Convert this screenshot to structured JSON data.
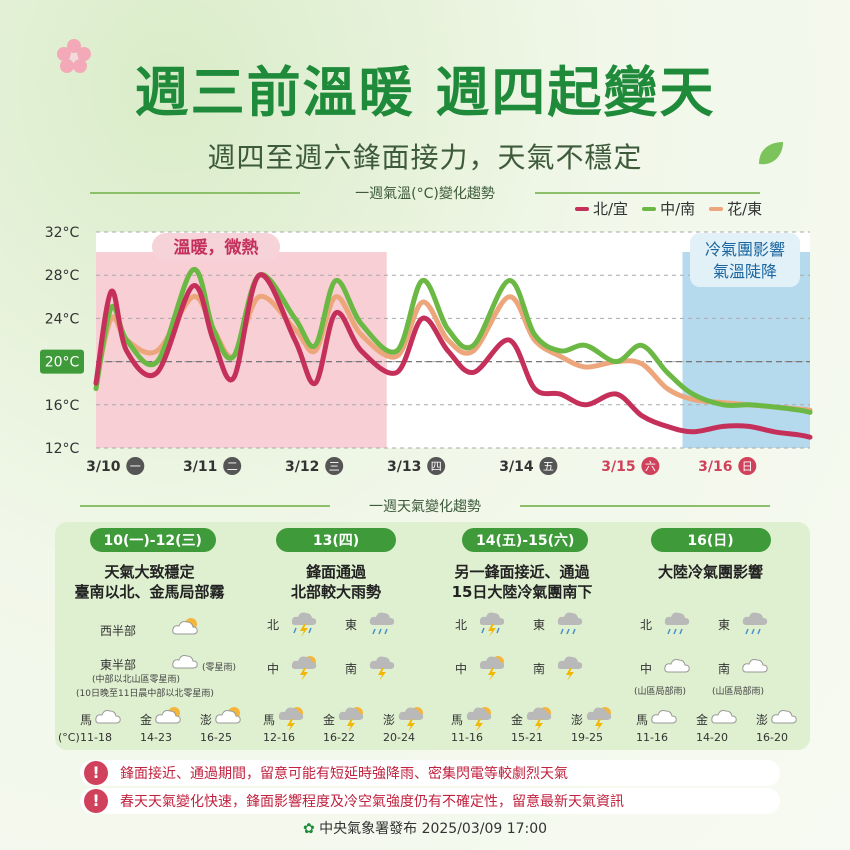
{
  "header": {
    "title": "週三前溫暖 週四起變天",
    "subtitle": "週四至週六鋒面接力，天氣不穩定"
  },
  "colors": {
    "north": "#c4305a",
    "central": "#6cb845",
    "east": "#eda67c",
    "warm_zone": "#f6c7cc",
    "cold_zone": "#a9d3ea",
    "accent": "#1f8a3a"
  },
  "chart_section_title": "一週氣溫(°C)變化趨勢",
  "chart_data": {
    "type": "line",
    "title": "一週氣溫(°C)變化趨勢",
    "ylim": [
      12,
      32
    ],
    "yticks": [
      "32°C",
      "28°C",
      "24°C",
      "20°C",
      "16°C",
      "12°C"
    ],
    "x_range": [
      0,
      7
    ],
    "x_labels": [
      "3/10",
      "3/11",
      "3/12",
      "3/13",
      "3/14",
      "3/15",
      "3/16"
    ],
    "x_weekdays": [
      "一",
      "二",
      "三",
      "四",
      "五",
      "六",
      "日"
    ],
    "legend_position": "top-right",
    "series": [
      {
        "name": "北/宜",
        "color": "#c4305a",
        "x": [
          0,
          0.15,
          0.3,
          0.6,
          0.95,
          1.15,
          1.35,
          1.6,
          1.95,
          2.15,
          2.35,
          2.6,
          2.95,
          3.2,
          3.45,
          3.7,
          4.05,
          4.3,
          4.55,
          4.8,
          5.1,
          5.35,
          5.6,
          5.85,
          6.15,
          6.4,
          6.65,
          6.9,
          7
        ],
        "y": [
          18,
          26.5,
          21,
          19,
          27,
          22,
          18.5,
          28,
          22,
          18,
          24.5,
          21,
          19,
          24,
          21,
          19,
          22,
          17.5,
          17,
          16,
          17,
          15,
          14,
          13.5,
          14,
          14,
          13.5,
          13.2,
          13
        ]
      },
      {
        "name": "中/南",
        "color": "#6cb845",
        "x": [
          0,
          0.15,
          0.3,
          0.6,
          0.95,
          1.15,
          1.35,
          1.6,
          1.95,
          2.15,
          2.35,
          2.6,
          2.95,
          3.2,
          3.45,
          3.7,
          4.05,
          4.3,
          4.55,
          4.8,
          5.1,
          5.35,
          5.6,
          5.85,
          6.15,
          6.4,
          6.65,
          6.9,
          7
        ],
        "y": [
          17.5,
          25,
          22,
          20,
          28.5,
          23,
          20.5,
          28,
          24,
          21.5,
          27.5,
          23.5,
          21,
          27.5,
          23,
          21.5,
          27.5,
          22.5,
          21,
          21.5,
          20,
          21.5,
          19,
          17,
          16,
          16,
          15.8,
          15.5,
          15.3
        ]
      },
      {
        "name": "花/東",
        "color": "#eda67c",
        "x": [
          0,
          0.15,
          0.3,
          0.6,
          0.95,
          1.15,
          1.35,
          1.6,
          1.95,
          2.15,
          2.35,
          2.6,
          2.95,
          3.2,
          3.45,
          3.7,
          4.05,
          4.3,
          4.55,
          4.8,
          5.1,
          5.35,
          5.6,
          5.85,
          6.15,
          6.4,
          6.65,
          6.9,
          7
        ],
        "y": [
          18,
          24,
          22,
          21,
          26,
          23,
          20.5,
          26,
          23,
          21,
          26,
          22.5,
          20.5,
          25.5,
          22,
          21,
          26,
          22,
          20.5,
          19.5,
          20,
          19.8,
          17.5,
          16.5,
          16.2,
          16,
          15.8,
          15.6,
          15.5
        ]
      }
    ],
    "annotations": [
      {
        "text": "溫暖，微熱"
      },
      {
        "text": "冷氣團影響\n氣溫陡降"
      }
    ],
    "zones": [
      {
        "label": "warm",
        "x_from": 0,
        "x_to": 2.85
      },
      {
        "label": "cold",
        "x_from": 5.75,
        "x_to": 7
      }
    ],
    "reference_line": 20
  },
  "legend": [
    {
      "label": "北/宜",
      "color": "#c4305a"
    },
    {
      "label": "中/南",
      "color": "#6cb845"
    },
    {
      "label": "花/東",
      "color": "#eda67c"
    }
  ],
  "weather_section_title": "一週天氣變化趨勢",
  "periods": [
    {
      "date": "10(一)-12(三)",
      "headline": "天氣大致穩定\n臺南以北、金馬局部霧",
      "rows": [
        {
          "region": "西半部",
          "icon": "sunny-partly-cloudy-icon"
        },
        {
          "region": "東半部",
          "icon": "cloudy-icon",
          "note": "(零星雨)"
        }
      ],
      "notes": [
        "(中部以北山區零星雨)",
        "(10日晚至11日晨中部以北零星雨)"
      ]
    },
    {
      "date": "13(四)",
      "headline": "鋒面通過\n北部較大雨勢",
      "cells": [
        {
          "region": "北",
          "icon": "thunderstorm-icon"
        },
        {
          "region": "東",
          "icon": "rain-icon"
        },
        {
          "region": "中",
          "icon": "thunder-sun-icon"
        },
        {
          "region": "南",
          "icon": "thunder-cloud-icon"
        }
      ]
    },
    {
      "date": "14(五)-15(六)",
      "headline": "另一鋒面接近、通過\n15日大陸冷氣團南下",
      "cells": [
        {
          "region": "北",
          "icon": "thunderstorm-icon"
        },
        {
          "region": "東",
          "icon": "rain-icon"
        },
        {
          "region": "中",
          "icon": "thunder-sun-icon"
        },
        {
          "region": "南",
          "icon": "thunder-cloud-icon"
        }
      ]
    },
    {
      "date": "16(日)",
      "headline": "大陸冷氣團影響",
      "cells": [
        {
          "region": "北",
          "icon": "rain-icon"
        },
        {
          "region": "東",
          "icon": "rain-icon"
        },
        {
          "region": "中",
          "icon": "cloudy-icon",
          "note": "(山區局部雨)"
        },
        {
          "region": "南",
          "icon": "cloudy-icon",
          "note": "(山區局部雨)"
        }
      ]
    }
  ],
  "outer_islands": {
    "unit": "(°C)",
    "groups": [
      [
        {
          "name": "馬",
          "range": "11-18"
        },
        {
          "name": "金",
          "range": "14-23"
        },
        {
          "name": "澎",
          "range": "16-25"
        }
      ],
      [
        {
          "name": "馬",
          "range": "12-16"
        },
        {
          "name": "金",
          "range": "16-22"
        },
        {
          "name": "澎",
          "range": "20-24"
        }
      ],
      [
        {
          "name": "馬",
          "range": "11-16"
        },
        {
          "name": "金",
          "range": "15-21"
        },
        {
          "name": "澎",
          "range": "19-25"
        }
      ],
      [
        {
          "name": "馬",
          "range": "11-16"
        },
        {
          "name": "金",
          "range": "14-20"
        },
        {
          "name": "澎",
          "range": "16-20"
        }
      ]
    ]
  },
  "warnings": [
    "鋒面接近、通過期間，留意可能有短延時強降雨、密集閃電等較劇烈天氣",
    "春天天氣變化快速，鋒面影響程度及冷空氣強度仍有不確定性，留意最新天氣資訊"
  ],
  "footer": {
    "issuer": "中央氣象署發布 2025/03/09 17:00"
  }
}
